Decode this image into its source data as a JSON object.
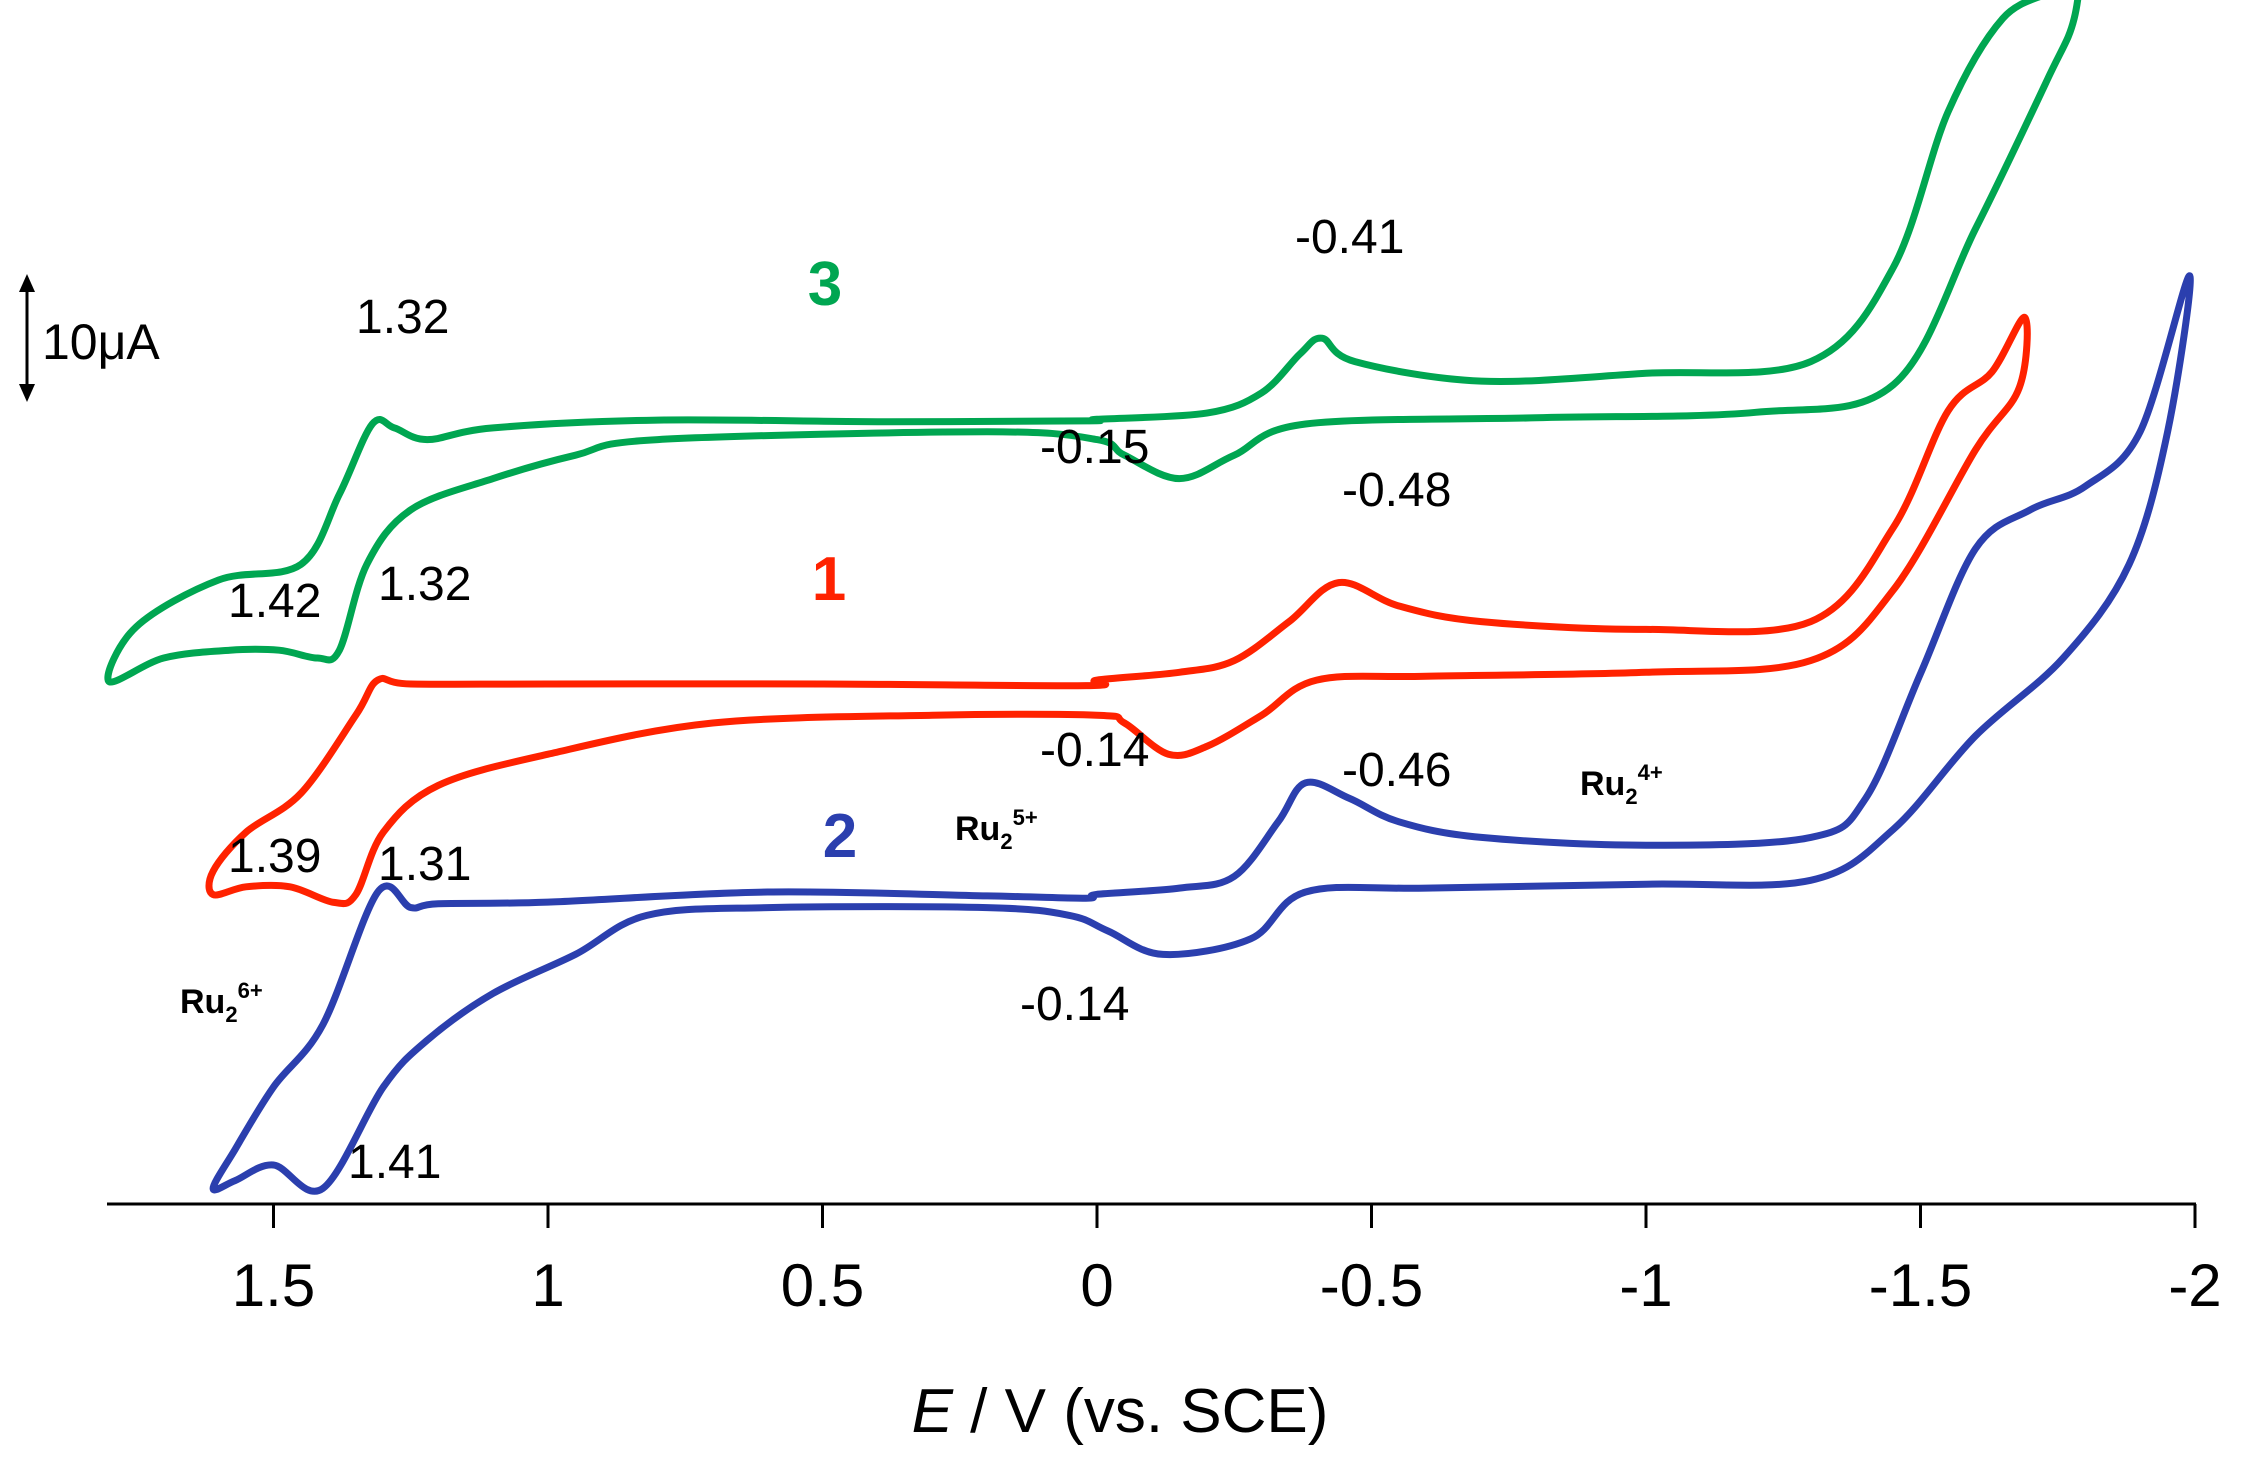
{
  "chart_data": {
    "type": "line",
    "title": "",
    "xlabel_italic": "E",
    "xlabel_rest": " / V (vs. SCE)",
    "ylabel": "",
    "xlim": [
      1.8,
      -2.0
    ],
    "x_ticks": [
      1.5,
      1,
      0.5,
      0,
      -0.5,
      -1,
      -1.5,
      -2
    ],
    "x_tick_labels": [
      "1.5",
      "1",
      "0.5",
      "0",
      "-0.5",
      "-1",
      "-1.5",
      "-2"
    ],
    "scale_bar_label": "10μA",
    "series": [
      {
        "name": "3",
        "color": "#00a651",
        "offset": 300,
        "points": [
          [
            0,
            0.6
          ],
          [
            -0.2,
            1.4
          ],
          [
            -0.3,
            4
          ],
          [
            -0.37,
            9
          ],
          [
            -0.41,
            11
          ],
          [
            -0.47,
            8
          ],
          [
            -0.7,
            5.5
          ],
          [
            -1.0,
            6.5
          ],
          [
            -1.3,
            8
          ],
          [
            -1.45,
            20
          ],
          [
            -1.55,
            40
          ],
          [
            -1.65,
            52
          ],
          [
            -1.75,
            56
          ],
          [
            -1.79,
            61
          ],
          [
            -1.78,
            52
          ],
          [
            -1.73,
            44
          ],
          [
            -1.6,
            25
          ],
          [
            -1.45,
            5
          ],
          [
            -1.2,
            1.5
          ],
          [
            -0.8,
            0.8
          ],
          [
            -0.38,
            0
          ],
          [
            -0.25,
            -4
          ],
          [
            -0.15,
            -7
          ],
          [
            -0.05,
            -4
          ],
          [
            0.0,
            -2
          ],
          [
            0.2,
            -1
          ],
          [
            0.8,
            -2
          ],
          [
            0.95,
            -4
          ],
          [
            1.1,
            -7
          ],
          [
            1.25,
            -11
          ],
          [
            1.33,
            -18
          ],
          [
            1.38,
            -29
          ],
          [
            1.42,
            -30
          ],
          [
            1.49,
            -29
          ],
          [
            1.58,
            -29
          ],
          [
            1.7,
            -30
          ],
          [
            1.8,
            -33
          ],
          [
            1.75,
            -26
          ],
          [
            1.6,
            -20
          ],
          [
            1.45,
            -18
          ],
          [
            1.38,
            -9
          ],
          [
            1.32,
            0
          ],
          [
            1.28,
            -0.5
          ],
          [
            1.22,
            -2
          ],
          [
            1.1,
            -0.5
          ],
          [
            0.8,
            0.5
          ],
          [
            0.4,
            0.3
          ],
          [
            0.02,
            0.4
          ]
        ]
      },
      {
        "name": "1",
        "color": "#ff2200",
        "offset": 200,
        "points": [
          [
            0,
            0.5
          ],
          [
            -0.15,
            1.5
          ],
          [
            -0.25,
            3
          ],
          [
            -0.35,
            8
          ],
          [
            -0.44,
            13
          ],
          [
            -0.55,
            10
          ],
          [
            -0.7,
            8
          ],
          [
            -1.0,
            7
          ],
          [
            -1.3,
            8
          ],
          [
            -1.45,
            20
          ],
          [
            -1.55,
            35
          ],
          [
            -1.63,
            40
          ],
          [
            -1.69,
            47
          ],
          [
            -1.68,
            38
          ],
          [
            -1.6,
            30
          ],
          [
            -1.45,
            12
          ],
          [
            -1.3,
            3
          ],
          [
            -1.0,
            1.5
          ],
          [
            -0.6,
            1
          ],
          [
            -0.4,
            0.5
          ],
          [
            -0.3,
            -4
          ],
          [
            -0.2,
            -8
          ],
          [
            -0.13,
            -9
          ],
          [
            -0.05,
            -5
          ],
          [
            0.0,
            -4
          ],
          [
            0.3,
            -4
          ],
          [
            0.7,
            -5
          ],
          [
            1.0,
            -9
          ],
          [
            1.2,
            -13
          ],
          [
            1.3,
            -19
          ],
          [
            1.35,
            -27
          ],
          [
            1.39,
            -28
          ],
          [
            1.47,
            -26
          ],
          [
            1.55,
            -26
          ],
          [
            1.61,
            -27
          ],
          [
            1.61,
            -24
          ],
          [
            1.55,
            -19
          ],
          [
            1.45,
            -14
          ],
          [
            1.35,
            -4
          ],
          [
            1.31,
            0.5
          ],
          [
            1.25,
            0
          ],
          [
            1.0,
            0
          ],
          [
            0.5,
            0
          ],
          [
            0.02,
            -0.2
          ]
        ]
      },
      {
        "name": "2",
        "color": "#2b3fae",
        "offset": 120,
        "points": [
          [
            0,
            -0.3
          ],
          [
            -0.15,
            0.5
          ],
          [
            -0.25,
            2
          ],
          [
            -0.33,
            9
          ],
          [
            -0.38,
            14
          ],
          [
            -0.46,
            12
          ],
          [
            -0.55,
            9
          ],
          [
            -0.7,
            7
          ],
          [
            -1.0,
            6
          ],
          [
            -1.3,
            7
          ],
          [
            -1.4,
            12
          ],
          [
            -1.5,
            28
          ],
          [
            -1.6,
            44
          ],
          [
            -1.7,
            49
          ],
          [
            -1.8,
            52
          ],
          [
            -1.9,
            59
          ],
          [
            -1.99,
            79
          ],
          [
            -1.95,
            59
          ],
          [
            -1.88,
            42
          ],
          [
            -1.76,
            30
          ],
          [
            -1.6,
            20
          ],
          [
            -1.45,
            8
          ],
          [
            -1.3,
            1.5
          ],
          [
            -1.0,
            1
          ],
          [
            -0.6,
            0.5
          ],
          [
            -0.38,
            0
          ],
          [
            -0.28,
            -6
          ],
          [
            -0.12,
            -8
          ],
          [
            -0.02,
            -5
          ],
          [
            0.05,
            -3
          ],
          [
            0.2,
            -2
          ],
          [
            0.6,
            -2
          ],
          [
            0.82,
            -3
          ],
          [
            0.95,
            -8
          ],
          [
            1.1,
            -13
          ],
          [
            1.22,
            -19
          ],
          [
            1.3,
            -25
          ],
          [
            1.41,
            -38
          ],
          [
            1.5,
            -35
          ],
          [
            1.57,
            -37
          ],
          [
            1.61,
            -38
          ],
          [
            1.57,
            -33
          ],
          [
            1.5,
            -25
          ],
          [
            1.41,
            -17
          ],
          [
            1.31,
            0
          ],
          [
            1.25,
            -2
          ],
          [
            1.2,
            -1.5
          ],
          [
            1.0,
            -1.3
          ],
          [
            0.6,
            0
          ],
          [
            0.2,
            -0.5
          ],
          [
            0.02,
            -0.8
          ]
        ]
      }
    ],
    "annotations": [
      {
        "text": "1.32",
        "series": "3"
      },
      {
        "text": "1.42",
        "series": "3"
      },
      {
        "text": "-0.41",
        "series": "3"
      },
      {
        "text": "-0.15",
        "series": "3"
      },
      {
        "text": "1.32",
        "series": "1"
      },
      {
        "text": "1.39",
        "series": "1"
      },
      {
        "text": "-0.48",
        "series": "1"
      },
      {
        "text": "-0.14",
        "series": "1"
      },
      {
        "text": "1.31",
        "series": "2"
      },
      {
        "text": "1.41",
        "series": "2"
      },
      {
        "text": "-0.46",
        "series": "2"
      },
      {
        "text": "-0.14",
        "series": "2"
      }
    ],
    "species_labels": [
      {
        "base": "Ru",
        "sub": "2",
        "sup": "6+"
      },
      {
        "base": "Ru",
        "sub": "2",
        "sup": "5+"
      },
      {
        "base": "Ru",
        "sub": "2",
        "sup": "4+"
      }
    ]
  }
}
